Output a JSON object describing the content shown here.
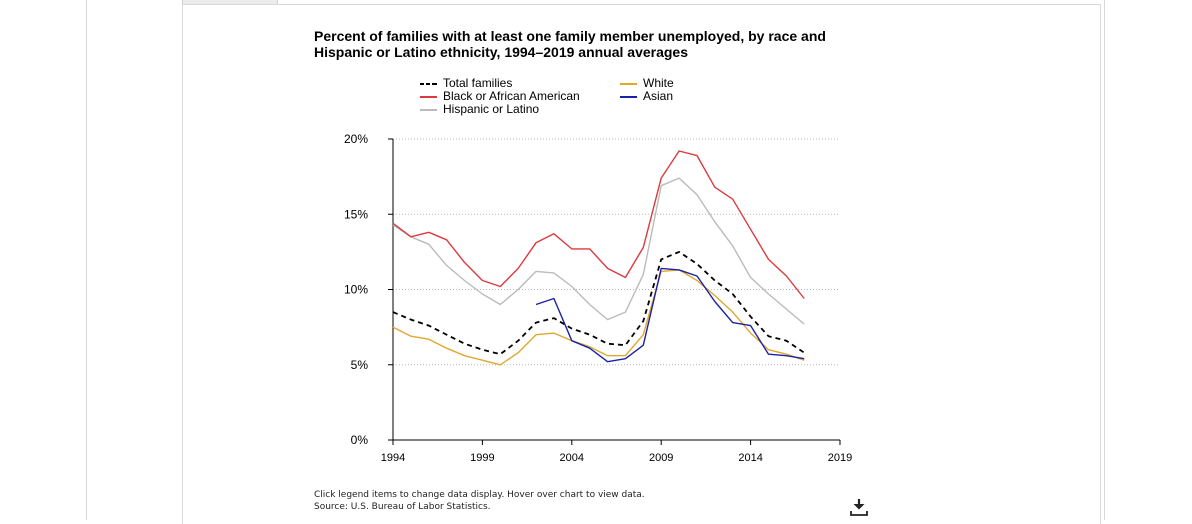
{
  "chart_data": {
    "type": "line",
    "title": "Percent of families with at least one family member unemployed, by race and Hispanic or Latino ethnicity, 1994–2019 annual averages",
    "x": [
      1994,
      1995,
      1996,
      1997,
      1998,
      1999,
      2000,
      2001,
      2002,
      2003,
      2004,
      2005,
      2006,
      2007,
      2008,
      2009,
      2010,
      2011,
      2012,
      2013,
      2014,
      2015,
      2016,
      2017
    ],
    "xticks": [
      1994,
      1999,
      2004,
      2009,
      2014,
      2019
    ],
    "xlim": [
      1994,
      2019
    ],
    "ylim": [
      0,
      20
    ],
    "yticks": [
      0,
      5,
      10,
      15,
      20
    ],
    "ytick_labels": [
      "0%",
      "5%",
      "10%",
      "15%",
      "20%"
    ],
    "grid": "horizontal dotted",
    "legend_position": "top",
    "series": [
      {
        "name": "Total families",
        "color": "#000000",
        "dashed": true,
        "values": [
          8.5,
          8.0,
          7.6,
          7.0,
          6.4,
          6.0,
          5.7,
          6.6,
          7.8,
          8.1,
          7.4,
          7.0,
          6.4,
          6.3,
          7.9,
          12.0,
          12.5,
          11.7,
          10.6,
          9.7,
          8.2,
          6.9,
          6.6,
          5.8
        ]
      },
      {
        "name": "White",
        "color": "#e0a82e",
        "dashed": false,
        "values": [
          7.5,
          6.9,
          6.7,
          6.1,
          5.6,
          5.3,
          5.0,
          5.8,
          7.0,
          7.1,
          6.6,
          6.2,
          5.6,
          5.6,
          7.0,
          11.2,
          11.3,
          10.6,
          9.6,
          8.5,
          7.1,
          6.0,
          5.7,
          5.3
        ]
      },
      {
        "name": "Black or African American",
        "color": "#dc3a3f",
        "dashed": false,
        "values": [
          14.4,
          13.5,
          13.8,
          13.3,
          11.8,
          10.6,
          10.2,
          11.4,
          13.1,
          13.7,
          12.7,
          12.7,
          11.4,
          10.8,
          12.8,
          17.4,
          19.2,
          18.9,
          16.8,
          16.0,
          14.0,
          12.0,
          10.9,
          9.4
        ]
      },
      {
        "name": "Asian",
        "color": "#1a22a8",
        "dashed": false,
        "values": [
          null,
          null,
          null,
          null,
          null,
          null,
          null,
          null,
          9.0,
          9.4,
          6.6,
          6.1,
          5.2,
          5.4,
          6.3,
          11.4,
          11.3,
          10.9,
          9.2,
          7.8,
          7.6,
          5.7,
          5.6,
          5.4
        ]
      },
      {
        "name": "Hispanic or Latino",
        "color": "#bbbbbb",
        "dashed": false,
        "values": [
          14.3,
          13.5,
          13.0,
          11.6,
          10.6,
          9.7,
          9.0,
          10.0,
          11.2,
          11.1,
          10.2,
          9.0,
          8.0,
          8.5,
          11.0,
          16.9,
          17.4,
          16.3,
          14.5,
          12.9,
          10.8,
          9.7,
          8.7,
          7.7
        ]
      }
    ]
  },
  "legend": {
    "total": "Total families",
    "black": "Black or African American",
    "hispanic": "Hispanic or Latino",
    "white": "White",
    "asian": "Asian"
  },
  "colors": {
    "total": "#000000",
    "white": "#e0a82e",
    "black": "#dc3a3f",
    "asian": "#1a22a8",
    "hispanic": "#bbbbbb"
  },
  "footer": {
    "note": "Click legend items to change data display. Hover over chart to view data.",
    "source": "Source: U.S. Bureau of Labor Statistics."
  },
  "icons": {
    "download": "download-icon"
  }
}
